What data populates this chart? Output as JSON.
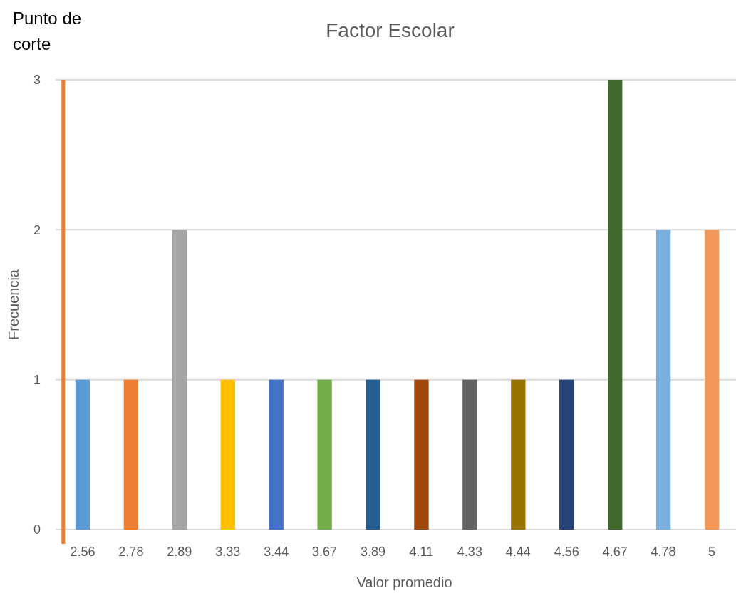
{
  "chart_data": {
    "type": "bar",
    "title": "Factor Escolar",
    "xlabel": "Valor promedio",
    "ylabel": "Frecuencia",
    "categories": [
      "2.56",
      "2.78",
      "2.89",
      "3.33",
      "3.44",
      "3.67",
      "3.89",
      "4.11",
      "4.33",
      "4.44",
      "4.56",
      "4.67",
      "4.78",
      "5"
    ],
    "values": [
      1,
      1,
      2,
      1,
      1,
      1,
      1,
      1,
      1,
      1,
      1,
      3,
      2,
      2
    ],
    "colors": [
      "#5b9bd5",
      "#ed7d31",
      "#a5a5a5",
      "#ffc000",
      "#4472c4",
      "#70ad47",
      "#255e91",
      "#9e480e",
      "#636363",
      "#997300",
      "#264478",
      "#43682b",
      "#7cafdd",
      "#f1975a"
    ],
    "ylim": [
      0,
      3
    ],
    "yticks": [
      0,
      1,
      2,
      3
    ],
    "grid": "y",
    "annotations": [
      "Punto de corte"
    ]
  }
}
